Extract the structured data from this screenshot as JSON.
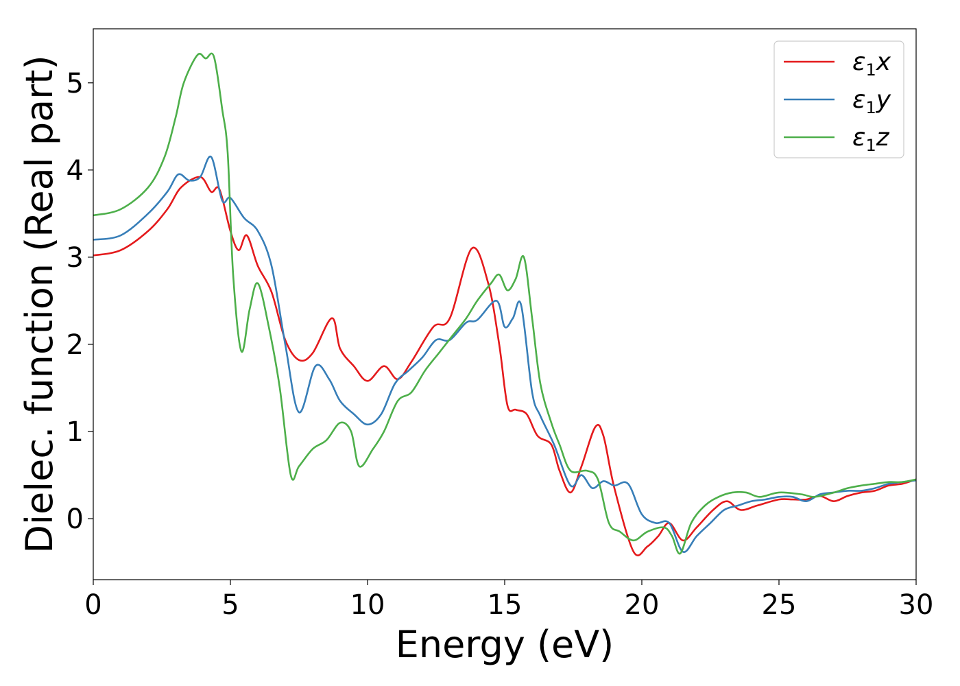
{
  "chart_data": {
    "type": "line",
    "xlabel": "Energy (eV)",
    "ylabel": "Dielec. function (Real part)",
    "xlim": [
      0,
      30
    ],
    "ylim": [
      -0.7,
      5.62
    ],
    "xticks": [
      0,
      5,
      10,
      15,
      20,
      25,
      30
    ],
    "yticks": [
      0,
      1,
      2,
      3,
      4,
      5
    ],
    "grid": false,
    "legend_position": "top-right",
    "series": [
      {
        "name": "ε₁x",
        "legend_main": "ε",
        "legend_sub": "1",
        "legend_suffix": "x",
        "color": "#e41a1c",
        "x": [
          0,
          1,
          2,
          2.7,
          3.2,
          3.9,
          4.3,
          4.6,
          5.0,
          5.3,
          5.6,
          6.0,
          6.5,
          7.0,
          7.5,
          8.0,
          8.7,
          9.0,
          9.5,
          10.0,
          10.6,
          11.1,
          11.6,
          12.4,
          13.0,
          13.8,
          14.4,
          14.8,
          15.1,
          15.4,
          15.8,
          16.2,
          16.7,
          17.0,
          17.4,
          17.8,
          18.3,
          18.6,
          19.0,
          19.7,
          20.2,
          20.6,
          21.0,
          21.5,
          22.0,
          22.6,
          23.1,
          23.6,
          24.2,
          25.0,
          25.5,
          26.0,
          26.5,
          27.0,
          27.5,
          28.0,
          28.5,
          29.0,
          29.5,
          30.0
        ],
        "y": [
          3.02,
          3.08,
          3.3,
          3.55,
          3.8,
          3.92,
          3.75,
          3.78,
          3.3,
          3.08,
          3.25,
          2.9,
          2.6,
          2.05,
          1.82,
          1.9,
          2.3,
          1.95,
          1.75,
          1.58,
          1.75,
          1.6,
          1.8,
          2.2,
          2.3,
          3.1,
          2.7,
          2.0,
          1.3,
          1.25,
          1.2,
          0.95,
          0.85,
          0.55,
          0.3,
          0.6,
          1.05,
          0.95,
          0.35,
          -0.38,
          -0.32,
          -0.2,
          -0.05,
          -0.25,
          -0.1,
          0.1,
          0.2,
          0.1,
          0.15,
          0.22,
          0.22,
          0.22,
          0.26,
          0.2,
          0.26,
          0.3,
          0.32,
          0.38,
          0.4,
          0.45
        ]
      },
      {
        "name": "ε₁y",
        "legend_main": "ε",
        "legend_sub": "1",
        "legend_suffix": "y",
        "color": "#377eb8",
        "x": [
          0,
          1,
          2,
          2.7,
          3.1,
          3.5,
          3.9,
          4.3,
          4.7,
          5.0,
          5.5,
          6.0,
          6.5,
          7.0,
          7.5,
          8.1,
          8.6,
          9.0,
          9.5,
          10.0,
          10.5,
          11.0,
          11.5,
          12.0,
          12.5,
          13.0,
          13.6,
          14.0,
          14.7,
          15.0,
          15.3,
          15.6,
          16.0,
          16.3,
          16.8,
          17.4,
          17.8,
          18.2,
          18.6,
          19.0,
          19.5,
          20.0,
          20.5,
          21.0,
          21.5,
          22.0,
          22.5,
          23.0,
          23.5,
          24.0,
          24.5,
          25.0,
          25.5,
          26.0,
          26.5,
          27.0,
          27.5,
          28.0,
          28.5,
          29.0,
          29.5,
          30.0
        ],
        "y": [
          3.2,
          3.25,
          3.5,
          3.75,
          3.95,
          3.88,
          3.92,
          4.15,
          3.65,
          3.68,
          3.45,
          3.3,
          2.9,
          2.0,
          1.22,
          1.75,
          1.6,
          1.35,
          1.2,
          1.08,
          1.2,
          1.55,
          1.7,
          1.85,
          2.05,
          2.05,
          2.25,
          2.28,
          2.5,
          2.2,
          2.3,
          2.45,
          1.45,
          1.18,
          0.85,
          0.38,
          0.5,
          0.35,
          0.43,
          0.38,
          0.4,
          0.05,
          -0.05,
          -0.05,
          -0.38,
          -0.2,
          -0.05,
          0.1,
          0.15,
          0.2,
          0.22,
          0.25,
          0.25,
          0.2,
          0.28,
          0.3,
          0.32,
          0.32,
          0.35,
          0.4,
          0.42,
          0.44
        ]
      },
      {
        "name": "ε₁z",
        "legend_main": "ε",
        "legend_sub": "1",
        "legend_suffix": "z",
        "color": "#4daf4a",
        "x": [
          0,
          1,
          2,
          2.6,
          3.0,
          3.3,
          3.8,
          4.1,
          4.4,
          4.7,
          4.9,
          5.1,
          5.4,
          5.7,
          6.0,
          6.4,
          6.8,
          7.2,
          7.5,
          8.0,
          8.5,
          9.0,
          9.4,
          9.7,
          10.2,
          10.6,
          11.1,
          11.6,
          12.1,
          12.6,
          13.1,
          13.6,
          14.0,
          14.5,
          14.8,
          15.1,
          15.4,
          15.7,
          16.0,
          16.3,
          16.7,
          17.0,
          17.4,
          18.0,
          18.4,
          18.8,
          19.2,
          19.7,
          20.2,
          20.8,
          21.1,
          21.4,
          21.8,
          22.3,
          22.8,
          23.3,
          23.8,
          24.3,
          25.0,
          25.8,
          26.3,
          27.0,
          27.5,
          28.0,
          28.5,
          29.0,
          29.5,
          30.0
        ],
        "y": [
          3.48,
          3.55,
          3.8,
          4.15,
          4.6,
          5.0,
          5.32,
          5.28,
          5.3,
          4.7,
          4.2,
          2.8,
          1.92,
          2.4,
          2.7,
          2.2,
          1.5,
          0.5,
          0.6,
          0.8,
          0.9,
          1.1,
          1.0,
          0.6,
          0.8,
          1.0,
          1.35,
          1.45,
          1.7,
          1.9,
          2.1,
          2.3,
          2.5,
          2.7,
          2.8,
          2.62,
          2.75,
          3.0,
          2.3,
          1.55,
          1.1,
          0.85,
          0.55,
          0.55,
          0.45,
          -0.05,
          -0.15,
          -0.25,
          -0.15,
          -0.1,
          -0.2,
          -0.4,
          -0.05,
          0.15,
          0.25,
          0.3,
          0.3,
          0.25,
          0.3,
          0.28,
          0.25,
          0.3,
          0.35,
          0.38,
          0.4,
          0.42,
          0.42,
          0.45
        ]
      }
    ]
  }
}
